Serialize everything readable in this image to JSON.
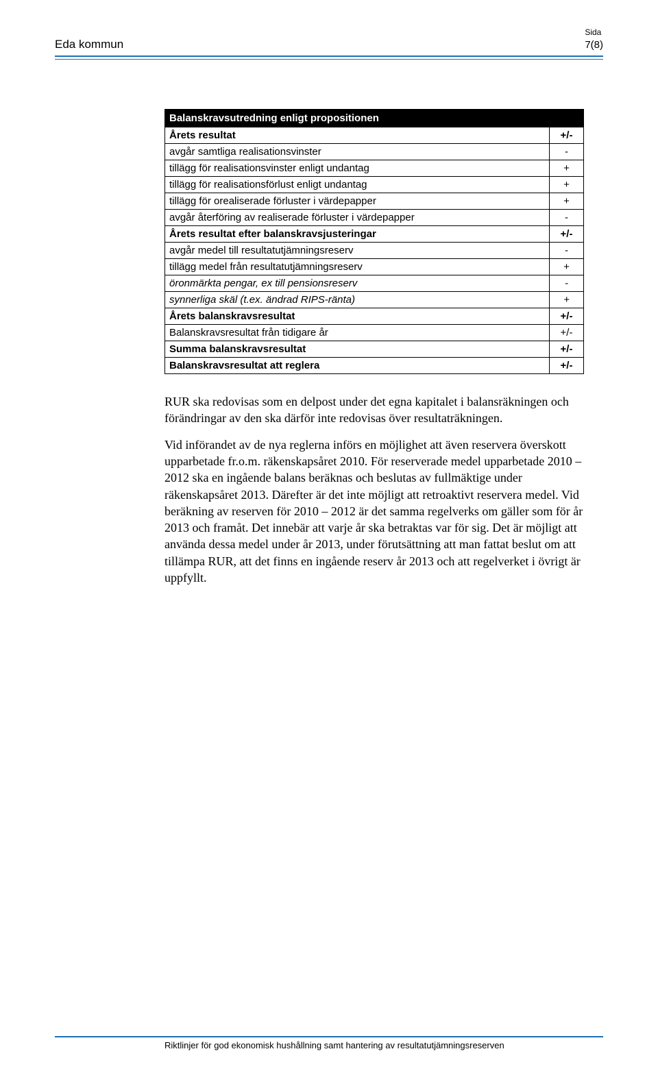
{
  "header": {
    "org": "Eda kommun",
    "page_label": "Sida",
    "page_value": "7(8)"
  },
  "table": {
    "type": "table",
    "header_bg": "#000000",
    "header_fg": "#ffffff",
    "border_color": "#000000",
    "font_size": 15,
    "columns": [
      {
        "width_pct": 91,
        "align": "left"
      },
      {
        "width_pct": 9,
        "align": "center"
      }
    ],
    "title_row": {
      "label": "Balanskravsutredning enligt propositionen",
      "sign": ""
    },
    "rows": [
      {
        "label": "Årets resultat",
        "sign": "+/-",
        "bold": true
      },
      {
        "label": "avgår samtliga realisationsvinster",
        "sign": "-"
      },
      {
        "label": "tillägg för realisationsvinster enligt undantag",
        "sign": "+"
      },
      {
        "label": "tillägg för realisationsförlust enligt undantag",
        "sign": "+"
      },
      {
        "label": "tillägg för orealiserade förluster i värdepapper",
        "sign": "+"
      },
      {
        "label": "avgår återföring av realiserade förluster i värdepapper",
        "sign": "-"
      },
      {
        "label": "Årets resultat efter balanskravsjusteringar",
        "sign": "+/-",
        "bold": true
      },
      {
        "label": "avgår medel till resultatutjämningsreserv",
        "sign": "-"
      },
      {
        "label": "tillägg medel från resultatutjämningsreserv",
        "sign": "+"
      },
      {
        "label": "öronmärkta pengar, ex till pensionsreserv",
        "sign": "-",
        "italic": true
      },
      {
        "label": "synnerliga skäl (t.ex. ändrad RIPS-ränta)",
        "sign": "+",
        "italic": true
      },
      {
        "label": "Årets balanskravsresultat",
        "sign": "+/-",
        "bold": true
      },
      {
        "label": "Balanskravsresultat från tidigare år",
        "sign": "+/-"
      },
      {
        "label": "Summa balanskravsresultat",
        "sign": "+/-",
        "bold": true
      },
      {
        "label": "Balanskravsresultat att reglera",
        "sign": "+/-",
        "bold": true
      }
    ]
  },
  "paragraphs": [
    "RUR ska redovisas som en delpost under det egna kapitalet i balansräkningen och förändringar av den ska därför inte redovisas över resultaträkningen.",
    "Vid införandet av de nya reglerna införs en möjlighet att även reservera överskott upparbetade fr.o.m. räkenskapsåret 2010. För reserverade medel upparbetade 2010 – 2012 ska en ingående balans beräknas och beslutas av fullmäktige under räkenskapsåret 2013. Därefter är det inte möjligt att retroaktivt reservera medel. Vid beräkning av reserven för 2010 – 2012 är det samma regelverks om gäller som för år 2013 och framåt. Det innebär att varje år ska betraktas var för sig. Det är möjligt att använda dessa medel under år 2013, under förutsättning att man fattat beslut om att tillämpa RUR, att det finns en ingående reserv år 2013 och att regelverket i övrigt är uppfyllt."
  ],
  "footer": {
    "text": "Riktlinjer för god ekonomisk hushållning samt hantering av resultatutjämningsreserven"
  },
  "colors": {
    "rule": "#1b6fb3",
    "text": "#000000",
    "background": "#ffffff"
  }
}
